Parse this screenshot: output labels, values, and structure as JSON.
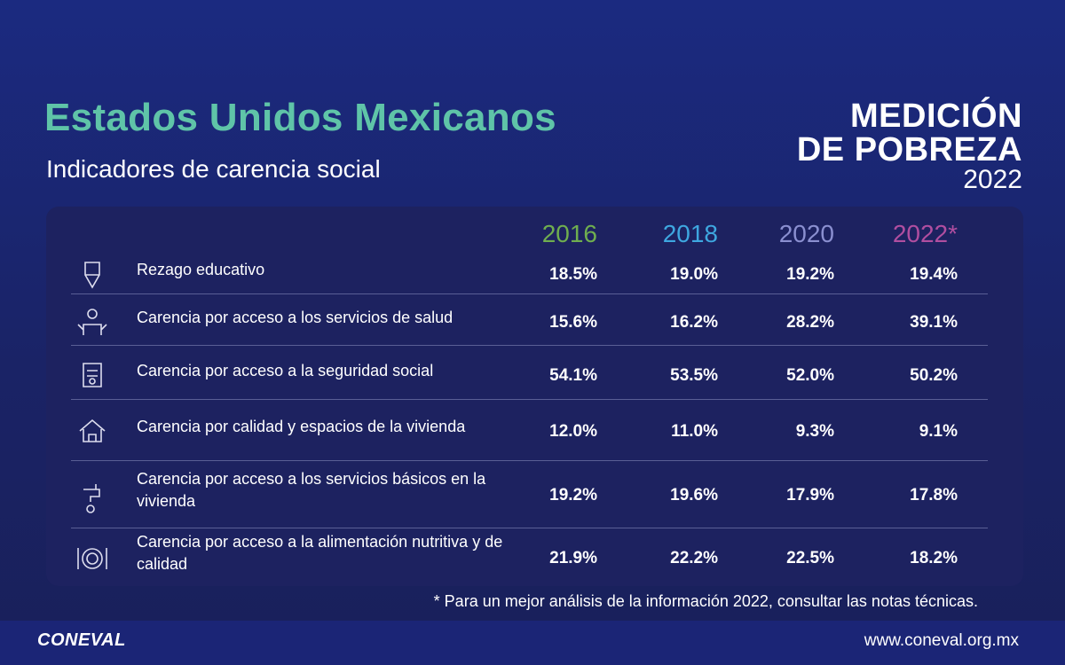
{
  "header": {
    "title": "Estados Unidos Mexicanos",
    "subtitle": "Indicadores de carencia social",
    "logo": [
      "MEDICIÓN",
      "DE POBREZA",
      "2022"
    ]
  },
  "table": {
    "columns": [
      "2016",
      "2018",
      "2020",
      "2022*"
    ],
    "rows": [
      [
        "Rezago educativo",
        "18.5%",
        "19.0%",
        "19.2%",
        "19.4%"
      ],
      [
        "Carencia por acceso a los servicios de salud",
        "15.6%",
        "16.2%",
        "28.2%",
        "39.1%"
      ],
      [
        "Carencia por acceso a la seguridad social",
        "54.1%",
        "53.5%",
        "52.0%",
        "50.2%"
      ],
      [
        "Carencia por calidad y espacios de la vivienda",
        "12.0%",
        "11.0%",
        "9.3%",
        "9.1%"
      ],
      [
        "Carencia por acceso a los servicios básicos en la vivienda",
        "19.2%",
        "19.6%",
        "17.9%",
        "17.8%"
      ],
      [
        "Carencia por acceso a la alimentación nutritiva y de calidad",
        "21.9%",
        "22.2%",
        "22.5%",
        "18.2%"
      ]
    ]
  },
  "footnote": "* Para un mejor análisis de la información 2022, consultar las notas técnicas.",
  "footer": {
    "brand": "CONEVAL",
    "url": "www.coneval.org.mx"
  }
}
